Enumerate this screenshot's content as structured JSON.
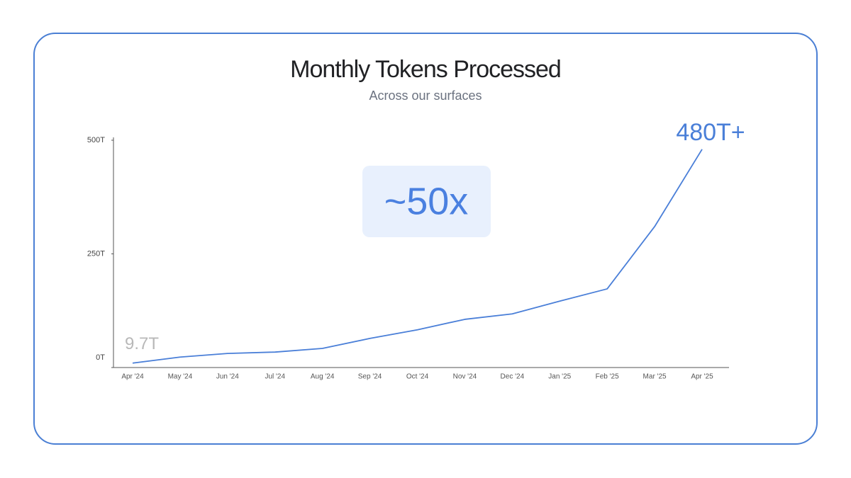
{
  "chart_data": {
    "type": "line",
    "title": "Monthly Tokens Processed",
    "subtitle": "Across our surfaces",
    "annotation": "~50x",
    "categories": [
      "Apr '24",
      "May '24",
      "Jun '24",
      "Jul '24",
      "Aug '24",
      "Sep '24",
      "Oct '24",
      "Nov '24",
      "Dec '24",
      "Jan '25",
      "Feb '25",
      "Mar '25",
      "Apr '25"
    ],
    "series": [
      {
        "name": "Monthly Tokens",
        "color": "#4a7fd8",
        "values": [
          9.7,
          23,
          31,
          34,
          42,
          64,
          83,
          106,
          118,
          146,
          173,
          310,
          480
        ],
        "value_labels": [
          "9.7T",
          null,
          null,
          null,
          null,
          null,
          null,
          null,
          null,
          null,
          null,
          null,
          "480T+"
        ]
      }
    ],
    "ylim": [
      0,
      500
    ],
    "yticks": [
      {
        "value": 0,
        "label": "0T"
      },
      {
        "value": 250,
        "label": "250T"
      },
      {
        "value": 500,
        "label": "500T"
      }
    ],
    "grid": false
  }
}
